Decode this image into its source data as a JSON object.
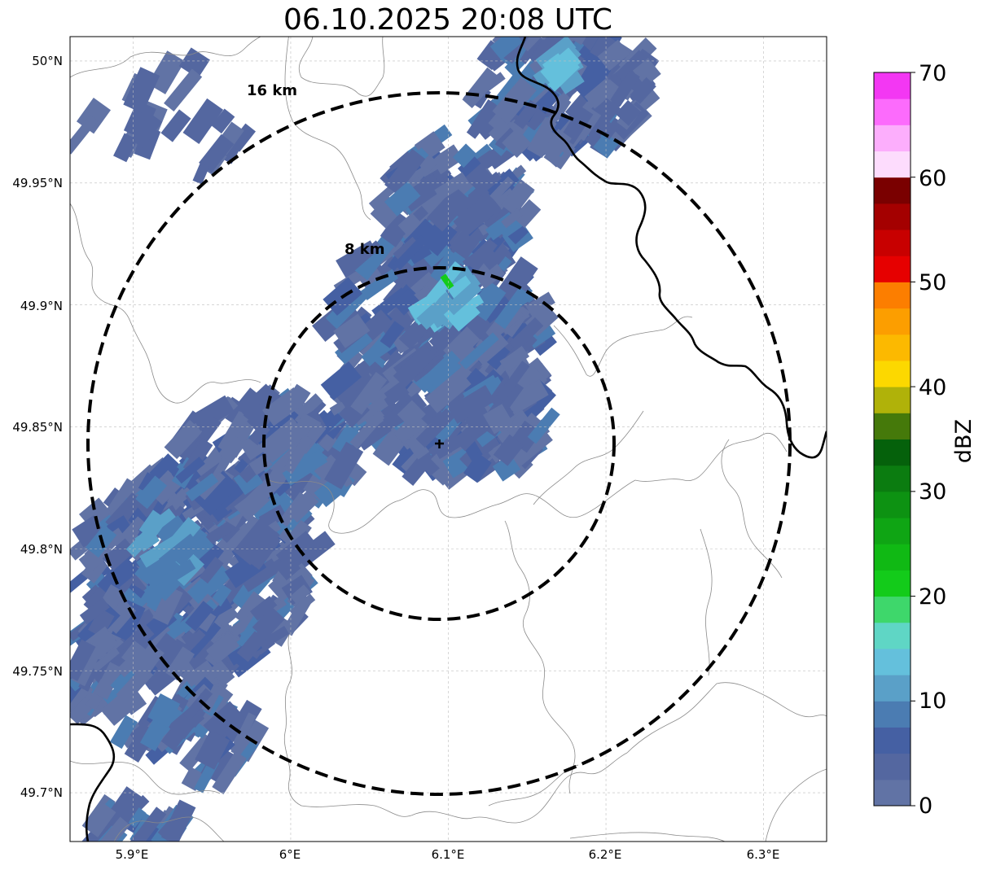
{
  "title": "06.10.2025 20:08 UTC",
  "map": {
    "lon_ticks": [
      "5.9°E",
      "6°E",
      "6.1°E",
      "6.2°E",
      "6.3°E"
    ],
    "lat_ticks": [
      "50°N",
      "49.95°N",
      "49.9°N",
      "49.85°N",
      "49.8°N",
      "49.75°N",
      "49.7°N"
    ],
    "extent": {
      "lon": [
        5.86,
        6.34
      ],
      "lat": [
        49.68,
        50.01
      ]
    },
    "radar_site": {
      "lon": 6.095,
      "lat": 49.843
    },
    "range_rings": [
      {
        "label": "8 km",
        "radius_km": 8
      },
      {
        "label": "16 km",
        "radius_km": 16
      }
    ],
    "gridlines": true
  },
  "colorbar": {
    "label": "dBZ",
    "ticks": [
      "0",
      "10",
      "20",
      "30",
      "40",
      "50",
      "60",
      "70"
    ],
    "range": [
      0,
      70
    ],
    "colors": [
      "#6173a5",
      "#5467a0",
      "#4560a3",
      "#4b7cb2",
      "#5aa0c8",
      "#64c0dc",
      "#5fd6c5",
      "#3ed76b",
      "#13cb1a",
      "#10b914",
      "#0fa514",
      "#0d9212",
      "#0b7c10",
      "#05610b",
      "#45790a",
      "#b0b209",
      "#fcd800",
      "#fcb900",
      "#fc9e00",
      "#fc7e00",
      "#e60000",
      "#c80000",
      "#a40000",
      "#7a0000",
      "#fddcfd",
      "#fcaefc",
      "#fc6bfc",
      "#f337f3"
    ]
  }
}
